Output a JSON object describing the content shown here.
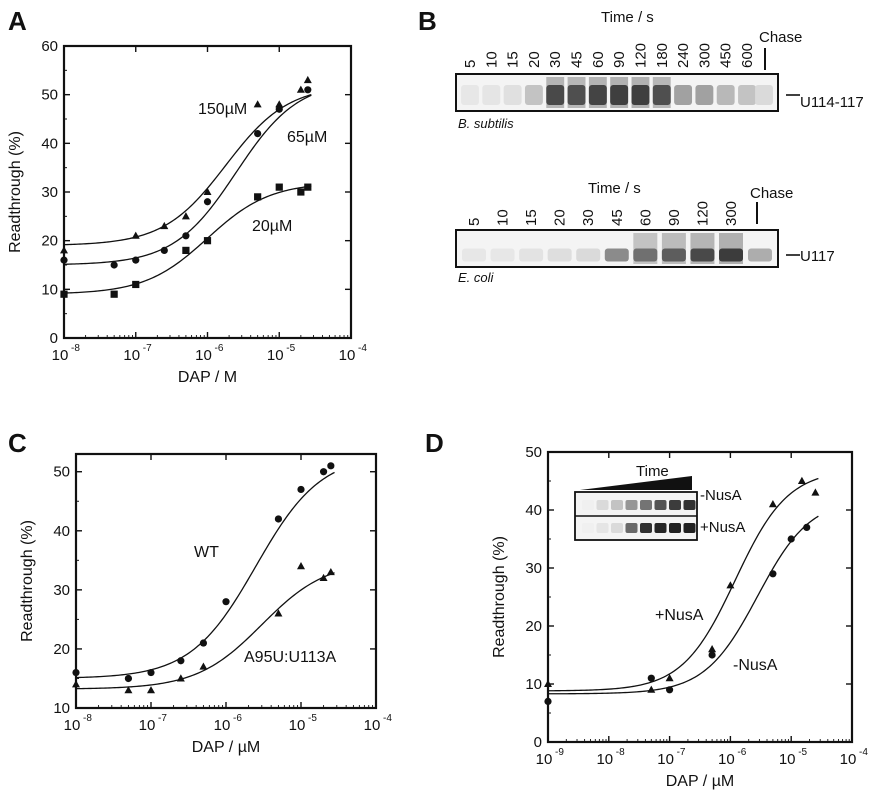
{
  "panels": {
    "A": "A",
    "B": "B",
    "C": "C",
    "D": "D"
  },
  "chart_data": [
    {
      "panel": "A",
      "type": "scatter",
      "xscale": "log",
      "xlim": [
        1e-08,
        0.0001
      ],
      "ylim": [
        0,
        60
      ],
      "xlabel": "DAP / M",
      "ylabel": "Readthrough (%)",
      "xticks": [
        1e-08,
        1e-07,
        1e-06,
        1e-05,
        0.0001
      ],
      "yticks": [
        0,
        10,
        20,
        30,
        40,
        50,
        60
      ],
      "series": [
        {
          "name": "150µM",
          "marker": "triangle",
          "x": [
            1e-08,
            1e-07,
            2.5e-07,
            5e-07,
            1e-06,
            5e-06,
            1e-05,
            2e-05,
            2.5e-05
          ],
          "y": [
            18,
            21,
            23,
            25,
            30,
            48,
            48,
            51,
            53
          ],
          "fit": {
            "bottom": 19,
            "top": 52,
            "ec50": 1.8e-06,
            "hill": 1
          }
        },
        {
          "name": "65µM",
          "marker": "circle",
          "x": [
            1e-08,
            5e-08,
            1e-07,
            2.5e-07,
            5e-07,
            1e-06,
            5e-06,
            1e-05,
            2.5e-05
          ],
          "y": [
            16,
            15,
            16,
            18,
            21,
            28,
            42,
            47,
            51
          ],
          "fit": {
            "bottom": 15,
            "top": 53,
            "ec50": 2.5e-06,
            "hill": 1
          }
        },
        {
          "name": "20µM",
          "marker": "square",
          "x": [
            1e-08,
            5e-08,
            1e-07,
            5e-07,
            1e-06,
            5e-06,
            1e-05,
            2e-05,
            2.5e-05
          ],
          "y": [
            9,
            9,
            11,
            18,
            20,
            29,
            31,
            30,
            31
          ],
          "fit": {
            "bottom": 9,
            "top": 32,
            "ec50": 1e-06,
            "hill": 1
          }
        }
      ]
    },
    {
      "panel": "C",
      "type": "scatter",
      "xscale": "log",
      "xlim": [
        1e-08,
        0.0001
      ],
      "ylim": [
        10,
        53
      ],
      "xlabel": "DAP / µM",
      "ylabel": "Readthrough (%)",
      "xticks": [
        1e-08,
        1e-07,
        1e-06,
        1e-05,
        0.0001
      ],
      "yticks": [
        10,
        20,
        30,
        40,
        50
      ],
      "series": [
        {
          "name": "WT",
          "marker": "circle",
          "x": [
            1e-08,
            5e-08,
            1e-07,
            2.5e-07,
            5e-07,
            1e-06,
            5e-06,
            1e-05,
            2e-05,
            2.5e-05
          ],
          "y": [
            16,
            15,
            16,
            18,
            21,
            28,
            42,
            47,
            50,
            51
          ],
          "fit": {
            "bottom": 15,
            "top": 53,
            "ec50": 2.5e-06,
            "hill": 1
          }
        },
        {
          "name": "A95U:U113A",
          "marker": "triangle",
          "x": [
            1e-08,
            5e-08,
            1e-07,
            2.5e-07,
            5e-07,
            5e-06,
            1e-05,
            2e-05,
            2.5e-05
          ],
          "y": [
            14,
            13,
            13,
            15,
            17,
            26,
            34,
            32,
            33
          ],
          "fit": {
            "bottom": 13.2,
            "top": 35,
            "ec50": 3e-06,
            "hill": 1
          }
        }
      ]
    },
    {
      "panel": "D",
      "type": "scatter",
      "xscale": "log",
      "xlim": [
        1e-09,
        0.0001
      ],
      "ylim": [
        0,
        50
      ],
      "xlabel": "DAP / µM",
      "ylabel": "Readthrough (%)",
      "xticks": [
        1e-09,
        1e-08,
        1e-07,
        1e-06,
        1e-05,
        0.0001
      ],
      "yticks": [
        0,
        10,
        20,
        30,
        40,
        50
      ],
      "series": [
        {
          "name": "+NusA",
          "marker": "triangle",
          "x": [
            1e-09,
            5e-08,
            1e-07,
            5e-07,
            1e-06,
            5e-06,
            1.5e-05,
            2.5e-05
          ],
          "y": [
            10,
            9,
            11,
            16,
            27,
            41,
            45,
            43
          ],
          "fit": {
            "bottom": 8.8,
            "top": 47,
            "ec50": 1.2e-06,
            "hill": 1
          }
        },
        {
          "name": "-NusA",
          "marker": "circle",
          "x": [
            1e-09,
            5e-08,
            1e-07,
            5e-07,
            5e-06,
            1e-05,
            1.8e-05
          ],
          "y": [
            7,
            11,
            9,
            15,
            29,
            35,
            37
          ],
          "fit": {
            "bottom": 8.3,
            "top": 42,
            "ec50": 2.8e-06,
            "hill": 1
          }
        }
      ]
    }
  ],
  "gels": {
    "bsub": {
      "header": "Time / s",
      "lanes": [
        "5",
        "10",
        "15",
        "20",
        "30",
        "45",
        "60",
        "90",
        "120",
        "180",
        "240",
        "300",
        "450",
        "600"
      ],
      "intensity": [
        0.04,
        0.05,
        0.07,
        0.2,
        0.85,
        0.82,
        0.88,
        0.9,
        0.9,
        0.82,
        0.35,
        0.35,
        0.25,
        0.2
      ],
      "chase": "Chase",
      "chase_intensity": 0.1,
      "band": "U114-117",
      "species": "B. subtilis"
    },
    "ecoli": {
      "header": "Time / s",
      "lanes": [
        "5",
        "10",
        "15",
        "20",
        "30",
        "45",
        "60",
        "90",
        "120",
        "300"
      ],
      "intensity": [
        0.04,
        0.04,
        0.06,
        0.08,
        0.1,
        0.45,
        0.65,
        0.75,
        0.85,
        0.92
      ],
      "chase": "Chase",
      "chase_intensity": 0.3,
      "band": "U117",
      "species": "E. coli"
    },
    "inset": {
      "label": "Time",
      "rows": [
        {
          "label": "-NusA",
          "intensity": [
            0,
            0.1,
            0.2,
            0.4,
            0.55,
            0.7,
            0.8,
            0.85
          ]
        },
        {
          "label": "+NusA",
          "intensity": [
            0,
            0.05,
            0.1,
            0.6,
            0.85,
            0.9,
            0.92,
            0.92
          ]
        }
      ]
    }
  }
}
